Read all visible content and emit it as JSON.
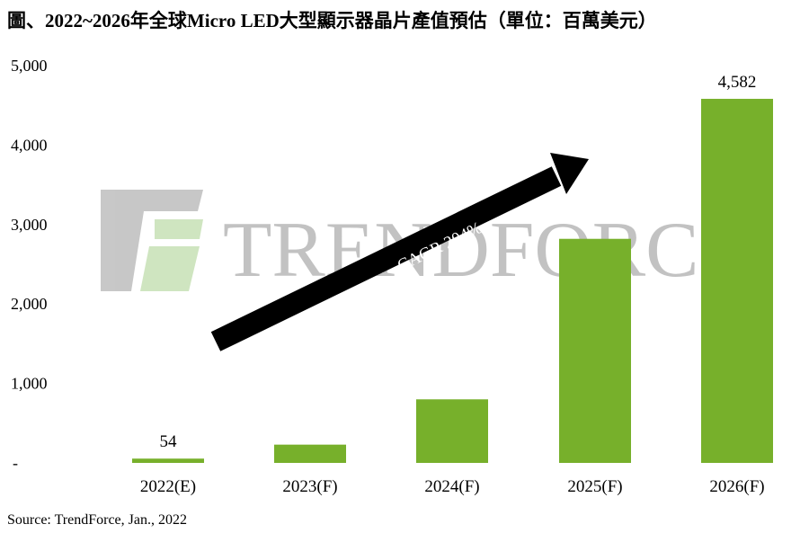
{
  "title": "圖、2022~2026年全球Micro LED大型顯示器晶片產值預估（單位：百萬美元）",
  "source": "Source: TrendForce, Jan., 2022",
  "watermark": {
    "text": "TRENDFORCE",
    "logo_icon": "trendforce-logo-icon"
  },
  "arrow": {
    "label": "CAGR 204%",
    "icon": "trend-arrow-icon"
  },
  "colors": {
    "bar": "#77b02b",
    "arrow": "#000000",
    "text": "#000000"
  },
  "chart_data": {
    "type": "bar",
    "title": "",
    "xlabel": "",
    "ylabel": "",
    "categories": [
      "2022(E)",
      "2023(F)",
      "2024(F)",
      "2025(F)",
      "2026(F)"
    ],
    "values": [
      54,
      230,
      800,
      2820,
      4582
    ],
    "data_labels": [
      "54",
      "",
      "",
      "",
      "4,582"
    ],
    "ylim": [
      0,
      5000
    ],
    "yticks": [
      0,
      1000,
      2000,
      3000,
      4000,
      5000
    ],
    "ytick_labels": [
      "-",
      "1,000",
      "2,000",
      "3,000",
      "4,000",
      "5,000"
    ],
    "grid": false,
    "legend": "none"
  }
}
